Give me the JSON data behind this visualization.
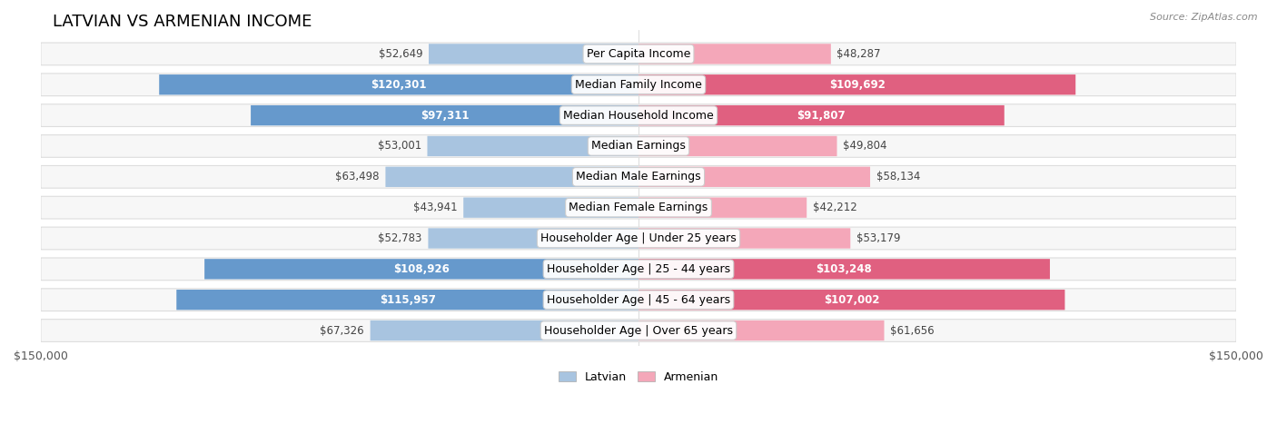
{
  "title": "LATVIAN VS ARMENIAN INCOME",
  "source": "Source: ZipAtlas.com",
  "categories": [
    "Per Capita Income",
    "Median Family Income",
    "Median Household Income",
    "Median Earnings",
    "Median Male Earnings",
    "Median Female Earnings",
    "Householder Age | Under 25 years",
    "Householder Age | 25 - 44 years",
    "Householder Age | 45 - 64 years",
    "Householder Age | Over 65 years"
  ],
  "latvian_values": [
    52649,
    120301,
    97311,
    53001,
    63498,
    43941,
    52783,
    108926,
    115957,
    67326
  ],
  "armenian_values": [
    48287,
    109692,
    91807,
    49804,
    58134,
    42212,
    53179,
    103248,
    107002,
    61656
  ],
  "latvian_color_light": "#a8c4e0",
  "latvian_color_dark": "#6699cc",
  "armenian_color_light": "#f4a7b9",
  "armenian_color_dark": "#e06080",
  "max_value": 150000,
  "bg_color": "#f0f0f0",
  "row_bg": "#f7f7f7",
  "row_border": "#dddddd",
  "label_fontsize": 9,
  "title_fontsize": 13,
  "value_fontsize": 8.5,
  "legend_labels": [
    "Latvian",
    "Armenian"
  ],
  "x_tick_labels": [
    "$150,000",
    "$150,000"
  ]
}
